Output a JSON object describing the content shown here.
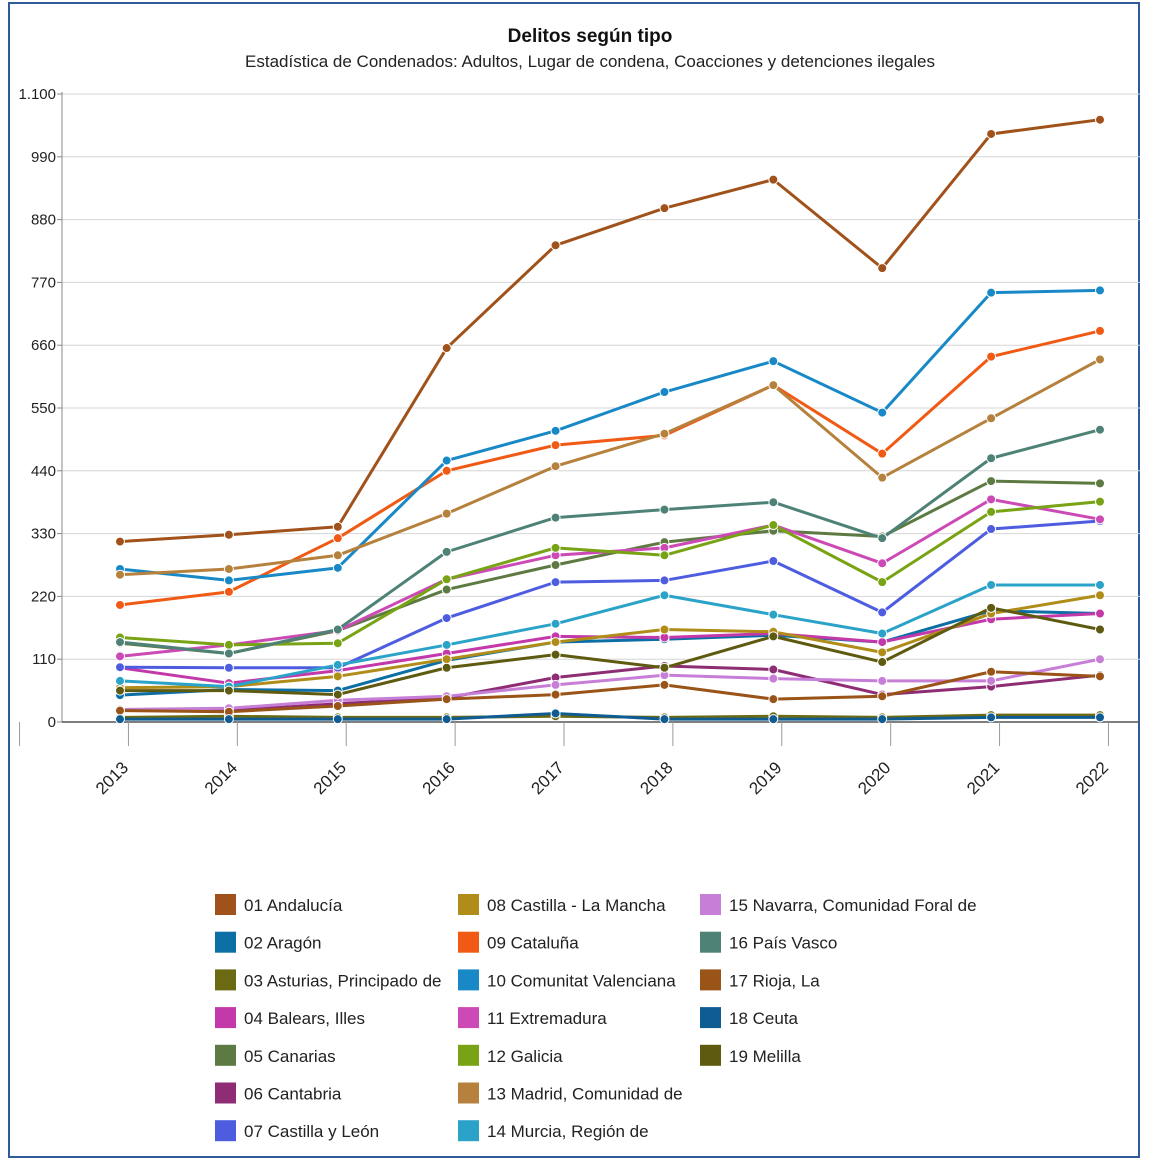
{
  "chart_data": {
    "type": "line",
    "title": "Delitos según tipo",
    "subtitle": "Estadística de Condenados: Adultos, Lugar de condena, Coacciones y detenciones ilegales",
    "xlabel": "",
    "ylabel": "",
    "ylim": [
      0,
      1100
    ],
    "yticks": [
      0,
      110,
      220,
      330,
      440,
      550,
      660,
      770,
      880,
      990,
      1100
    ],
    "ytick_labels": [
      "0",
      "110",
      "220",
      "330",
      "440",
      "550",
      "660",
      "770",
      "880",
      "990",
      "1.100"
    ],
    "categories": [
      "2013",
      "2014",
      "2015",
      "2016",
      "2017",
      "2018",
      "2019",
      "2020",
      "2021",
      "2022"
    ],
    "grid": true,
    "legend_position": "bottom",
    "series": [
      {
        "name": "01 Andalucía",
        "color": "#a0521a",
        "values": [
          316,
          328,
          342,
          655,
          835,
          900,
          950,
          795,
          1030,
          1055
        ]
      },
      {
        "name": "02 Aragón",
        "color": "#0b6fa5",
        "values": [
          47,
          57,
          55,
          108,
          140,
          145,
          152,
          140,
          195,
          190
        ]
      },
      {
        "name": "03 Asturias, Principado de",
        "color": "#6b6a12",
        "values": [
          8,
          10,
          8,
          8,
          10,
          8,
          10,
          8,
          12,
          12
        ]
      },
      {
        "name": "04 Balears, Illes",
        "color": "#c439aa",
        "values": [
          95,
          68,
          90,
          120,
          150,
          148,
          155,
          140,
          180,
          190
        ]
      },
      {
        "name": "05 Canarias",
        "color": "#5d7a42",
        "values": [
          138,
          120,
          160,
          232,
          275,
          315,
          335,
          325,
          422,
          418
        ]
      },
      {
        "name": "06 Cantabria",
        "color": "#8e2c74",
        "values": [
          22,
          20,
          32,
          42,
          78,
          98,
          92,
          48,
          62,
          82
        ]
      },
      {
        "name": "07 Castilla y León",
        "color": "#4e5de0",
        "values": [
          96,
          95,
          95,
          182,
          245,
          248,
          282,
          192,
          338,
          352
        ]
      },
      {
        "name": "08 Castilla - La Mancha",
        "color": "#b08c18",
        "values": [
          60,
          62,
          80,
          110,
          140,
          162,
          158,
          122,
          190,
          222
        ]
      },
      {
        "name": "09 Cataluña",
        "color": "#f05a14",
        "values": [
          205,
          228,
          322,
          440,
          485,
          502,
          590,
          470,
          640,
          685
        ]
      },
      {
        "name": "10 Comunitat Valenciana",
        "color": "#1889c6",
        "values": [
          268,
          248,
          270,
          458,
          510,
          578,
          632,
          542,
          752,
          756
        ]
      },
      {
        "name": "11 Extremadura",
        "color": "#cc4ab5",
        "values": [
          115,
          135,
          160,
          250,
          292,
          305,
          345,
          278,
          390,
          355
        ]
      },
      {
        "name": "12 Galicia",
        "color": "#78a314",
        "values": [
          148,
          135,
          138,
          250,
          305,
          292,
          345,
          245,
          368,
          386
        ]
      },
      {
        "name": "13 Madrid, Comunidad de",
        "color": "#b5813d",
        "values": [
          258,
          268,
          292,
          365,
          448,
          505,
          590,
          428,
          532,
          635
        ]
      },
      {
        "name": "14 Murcia, Región de",
        "color": "#2ba3c8",
        "values": [
          72,
          62,
          100,
          135,
          172,
          222,
          188,
          155,
          240,
          240
        ]
      },
      {
        "name": "15 Navarra, Comunidad Foral de",
        "color": "#c77ed6",
        "values": [
          22,
          24,
          38,
          45,
          65,
          82,
          76,
          72,
          72,
          110
        ]
      },
      {
        "name": "16 País Vasco",
        "color": "#4f8277",
        "values": [
          140,
          120,
          162,
          298,
          358,
          372,
          385,
          322,
          462,
          512
        ]
      },
      {
        "name": "17 Rioja, La",
        "color": "#9a5418",
        "values": [
          20,
          18,
          28,
          40,
          48,
          65,
          40,
          45,
          88,
          80
        ]
      },
      {
        "name": "18 Ceuta",
        "color": "#0f5c92",
        "values": [
          5,
          5,
          5,
          5,
          15,
          5,
          5,
          5,
          8,
          8
        ]
      },
      {
        "name": "19 Melilla",
        "color": "#5e5a10",
        "values": [
          55,
          55,
          48,
          95,
          118,
          95,
          150,
          105,
          200,
          162
        ]
      }
    ]
  }
}
